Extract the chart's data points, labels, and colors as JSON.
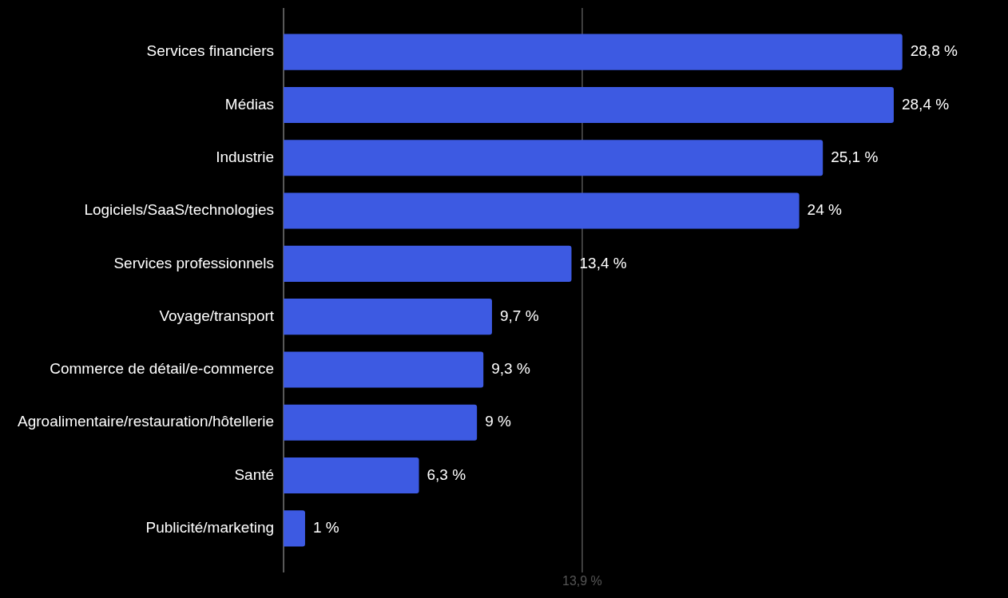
{
  "chart_data": {
    "type": "bar",
    "orientation": "horizontal",
    "categories": [
      "Services financiers",
      "Médias",
      "Industrie",
      "Logiciels/SaaS/technologies",
      "Services professionnels",
      "Voyage/transport",
      "Commerce de détail/e-commerce",
      "Agroalimentaire/restauration/hôtellerie",
      "Santé",
      "Publicité/marketing"
    ],
    "values": [
      28.8,
      28.4,
      25.1,
      24,
      13.4,
      9.7,
      9.3,
      9,
      6.3,
      1
    ],
    "value_labels": [
      "28,8 %",
      "28,4 %",
      "25,1 %",
      "24 %",
      "13,4 %",
      "9,7 %",
      "9,3 %",
      "9 %",
      "6,3 %",
      "1 %"
    ],
    "color": "#3d5ae2",
    "ref_lines": [
      {
        "axis": "x",
        "value": 13.9,
        "label": "13,9 %",
        "color": "#555555"
      }
    ],
    "legend": false,
    "tick_labels": "y"
  }
}
